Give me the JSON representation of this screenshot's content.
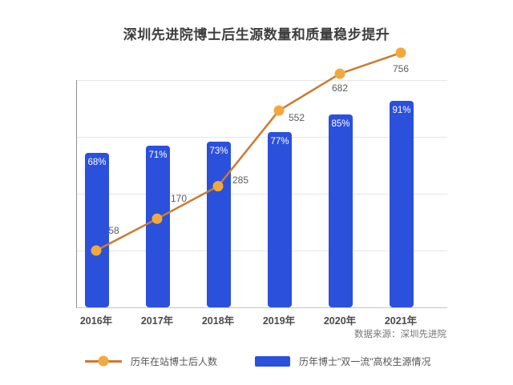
{
  "title": "深圳先进院博士后生源数量和质量稳步提升",
  "source": "数据来源：深圳先进院",
  "legend": {
    "items": [
      {
        "label": "历年在站博士后人数",
        "series": "line"
      },
      {
        "label": "历年博士\"双一流\"高校生源情况",
        "series": "bar"
      }
    ]
  },
  "colors": {
    "bar": "#2B50DB",
    "line": "#CD7A2E",
    "marker": "#F2A93C",
    "bar_label_text": "#FFFFFF",
    "point_label_text": "#5C5C5C"
  },
  "chart_data": {
    "type": "bar+line combo",
    "title": "深圳先进院博士后生源数量和质量稳步提升",
    "categories": [
      "2016年",
      "2017年",
      "2018年",
      "2019年",
      "2020年",
      "2021年"
    ],
    "series": [
      {
        "name": "历年博士\"双一流\"高校生源情况",
        "type": "bar",
        "unit": "%",
        "values": [
          68,
          71,
          73,
          77,
          85,
          91
        ],
        "labels": [
          "68%",
          "71%",
          "73%",
          "77%",
          "85%",
          "91%"
        ],
        "axis_range": [
          0,
          100
        ]
      },
      {
        "name": "历年在站博士后人数",
        "type": "line",
        "values": [
          58,
          170,
          285,
          552,
          682,
          756
        ]
      }
    ],
    "grid": true,
    "legend_position": "bottom",
    "source": "数据来源：深圳先进院"
  }
}
